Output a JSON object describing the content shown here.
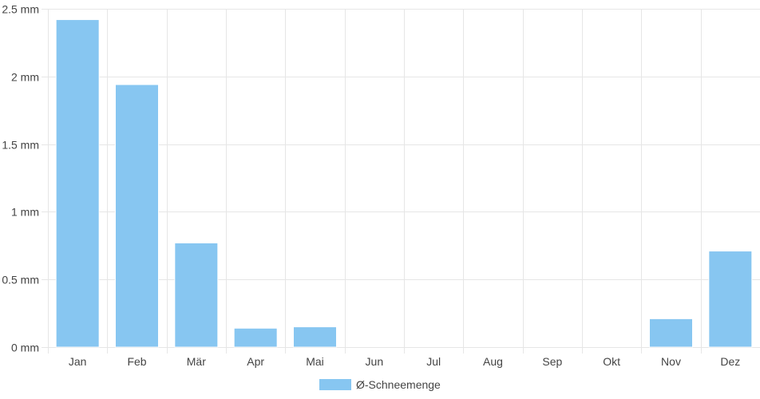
{
  "chart_data": {
    "type": "bar",
    "categories": [
      "Jan",
      "Feb",
      "Mär",
      "Apr",
      "Mai",
      "Jun",
      "Jul",
      "Aug",
      "Sep",
      "Okt",
      "Nov",
      "Dez"
    ],
    "series": [
      {
        "name": "Ø-Schneemenge",
        "values": [
          2.42,
          1.94,
          0.77,
          0.14,
          0.15,
          0,
          0,
          0,
          0,
          0,
          0.21,
          0.71
        ],
        "color": "#87c6f1"
      }
    ],
    "ylim": [
      0,
      2.5
    ],
    "y_ticks": [
      0,
      0.5,
      1,
      1.5,
      2,
      2.5
    ],
    "y_tick_labels": [
      "0 mm",
      "0.5 mm",
      "1 mm",
      "1.5 mm",
      "2 mm",
      "2.5 mm"
    ],
    "grid": true,
    "legend_position": "bottom-center",
    "colors": {
      "grid": "#e6e6e6",
      "bar_border": "#ffffff",
      "text": "#444444"
    }
  }
}
